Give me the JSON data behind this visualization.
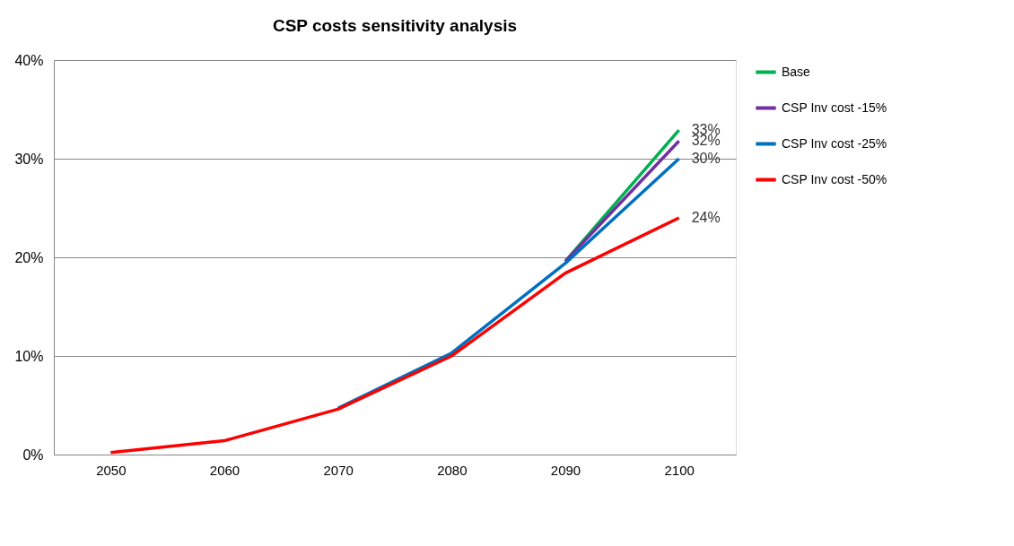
{
  "chart_data": {
    "type": "line",
    "title": "CSP costs sensitivity analysis",
    "categories": [
      "2050",
      "2060",
      "2070",
      "2080",
      "2090",
      "2100"
    ],
    "series": [
      {
        "name": "Base",
        "color": "#00b050",
        "values": [
          null,
          null,
          null,
          null,
          19.6,
          32.9
        ],
        "value_labels": [
          null,
          null,
          null,
          null,
          null,
          "33%"
        ]
      },
      {
        "name": "CSP Inv cost -15%",
        "color": "#7030a0",
        "values": [
          null,
          null,
          null,
          null,
          19.6,
          31.8
        ],
        "value_labels": [
          null,
          null,
          null,
          null,
          null,
          "32%"
        ]
      },
      {
        "name": "CSP Inv cost -25%",
        "color": "#0070c0",
        "values": [
          null,
          null,
          4.7,
          10.3,
          19.4,
          30.0
        ],
        "value_labels": [
          null,
          null,
          null,
          null,
          null,
          "30%"
        ]
      },
      {
        "name": "CSP Inv cost -50%",
        "color": "#ff0000",
        "values": [
          0.2,
          1.4,
          4.6,
          10.0,
          18.4,
          24.0
        ],
        "value_labels": [
          null,
          null,
          null,
          null,
          null,
          "24%"
        ]
      }
    ],
    "ylim": [
      0,
      40
    ],
    "yticks": [
      {
        "value": 0,
        "label": "0%"
      },
      {
        "value": 10,
        "label": "10%"
      },
      {
        "value": 20,
        "label": "20%"
      },
      {
        "value": 30,
        "label": "30%"
      },
      {
        "value": 40,
        "label": "40%"
      }
    ],
    "grid": "y",
    "legend": "right",
    "marker": "none",
    "line_style": "solid"
  }
}
